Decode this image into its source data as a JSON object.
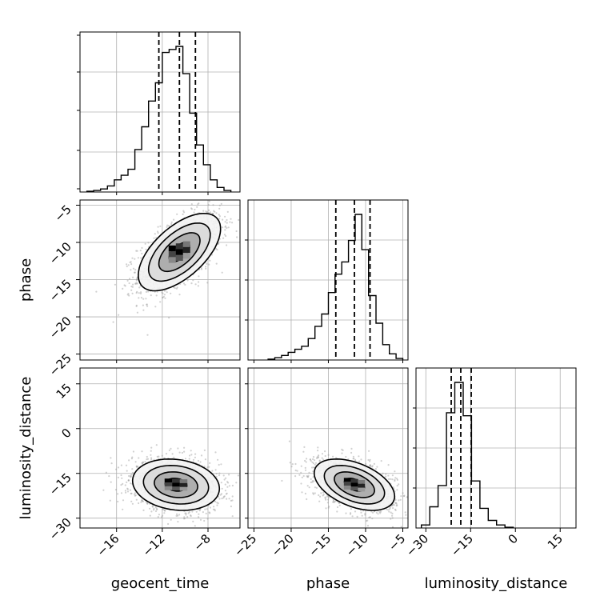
{
  "chart_data": {
    "type": "corner",
    "parameters": [
      "geocent_time",
      "phase",
      "luminosity_distance"
    ],
    "grid": true,
    "axes": {
      "geocent_time": {
        "lim": [
          -19.2,
          -5.2
        ],
        "ticks": [
          -16,
          -12,
          -8
        ],
        "tick_labels": [
          "−16",
          "−12",
          "−8"
        ]
      },
      "phase": {
        "lim": [
          -25.8,
          -4.3
        ],
        "ticks": [
          -25,
          -20,
          -15,
          -10,
          -5
        ],
        "tick_labels": [
          "−25",
          "−20",
          "−15",
          "−10",
          "−5"
        ]
      },
      "luminosity_distance": {
        "lim": [
          -33.3,
          20.3
        ],
        "ticks": [
          -30,
          -15,
          0,
          15
        ],
        "tick_labels": [
          "−30",
          "−15",
          "0",
          "15"
        ]
      }
    },
    "histograms": [
      {
        "parameter": "geocent_time",
        "bin_edges": [
          -18.6,
          -18.0,
          -17.4,
          -16.8,
          -16.2,
          -15.6,
          -15.0,
          -14.4,
          -13.8,
          -13.2,
          -12.6,
          -12.0,
          -11.4,
          -10.8,
          -10.2,
          -9.6,
          -9.0,
          -8.4,
          -7.8,
          -7.2,
          -6.6,
          -6.0
        ],
        "counts": [
          0.005,
          0.01,
          0.02,
          0.04,
          0.08,
          0.11,
          0.15,
          0.28,
          0.43,
          0.6,
          0.72,
          0.92,
          0.94,
          0.96,
          0.78,
          0.52,
          0.31,
          0.18,
          0.08,
          0.03,
          0.01
        ],
        "quantiles": [
          -12.3,
          -10.5,
          -9.1
        ]
      },
      {
        "parameter": "phase",
        "bin_edges": [
          -23.1,
          -22.2,
          -21.3,
          -20.4,
          -19.5,
          -18.6,
          -17.7,
          -16.8,
          -15.9,
          -15.0,
          -14.1,
          -13.2,
          -12.3,
          -11.4,
          -10.5,
          -9.6,
          -8.6,
          -7.7,
          -6.8,
          -5.9,
          -5.0
        ],
        "counts": [
          0.005,
          0.015,
          0.03,
          0.05,
          0.07,
          0.09,
          0.14,
          0.22,
          0.3,
          0.44,
          0.56,
          0.64,
          0.78,
          0.95,
          0.72,
          0.42,
          0.24,
          0.1,
          0.04,
          0.01
        ],
        "quantiles": [
          -14.0,
          -11.5,
          -9.4
        ]
      },
      {
        "parameter": "luminosity_distance",
        "bin_edges": [
          -31.5,
          -28.7,
          -25.9,
          -23.1,
          -20.3,
          -17.5,
          -14.7,
          -11.9,
          -9.1,
          -6.3,
          -3.5,
          -0.7
        ],
        "counts": [
          0.02,
          0.14,
          0.28,
          0.76,
          0.96,
          0.74,
          0.31,
          0.13,
          0.05,
          0.02,
          0.005
        ],
        "quantiles": [
          -21.5,
          -18.3,
          -14.8
        ]
      }
    ],
    "scatter_2d": [
      {
        "x": "geocent_time",
        "y": "phase",
        "center": [
          -10.5,
          -11.3
        ],
        "sigma": [
          1.8,
          2.6
        ],
        "correlation": 0.6
      },
      {
        "x": "geocent_time",
        "y": "luminosity_distance",
        "center": [
          -10.8,
          -18.8
        ],
        "sigma": [
          1.9,
          4.3
        ],
        "correlation": -0.15
      },
      {
        "x": "phase",
        "y": "luminosity_distance",
        "center": [
          -11.5,
          -18.8
        ],
        "sigma": [
          2.7,
          4.3
        ],
        "correlation": -0.45
      }
    ],
    "contour_levels_sigma": [
      0.5,
      1.0,
      1.5,
      2.0
    ]
  }
}
